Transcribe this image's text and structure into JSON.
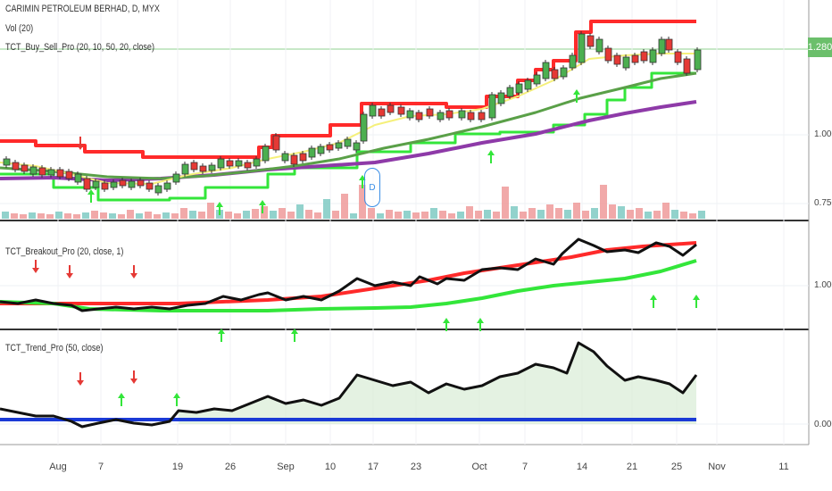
{
  "panel1": {
    "title": "CARIMIN PETROLEUM BERHAD, D, MYX",
    "vol_label": "Vol (20)",
    "indicator": "TCT_Buy_Sell_Pro (20, 10, 50, 20, close)",
    "last_price": "1.280",
    "y_ticks": [
      "1.000",
      "0.750"
    ]
  },
  "panel2": {
    "indicator": "TCT_Breakout_Pro (20, close, 1)",
    "y_ticks": [
      "1.000"
    ]
  },
  "panel3": {
    "indicator": "TCT_Trend_Pro (50, close)",
    "y_ticks": [
      "0.000"
    ]
  },
  "x_axis": [
    "Aug",
    "7",
    "19",
    "26",
    "Sep",
    "10",
    "17",
    "23",
    "Oct",
    "7",
    "14",
    "21",
    "25",
    "Nov",
    "11"
  ],
  "event_badge": "D",
  "colors": {
    "up": "#4caf50",
    "down": "#e53935",
    "upper_band": "#ff2a2a",
    "lower_band": "#33e63a",
    "ma_fast": "#f5f07a",
    "ma_mid": "#5aa048",
    "ma_slow": "#8e3aa8",
    "vol_up": "#7fcac3",
    "vol_down": "#ef9a9a",
    "trend_zero": "#1a3ad6"
  }
}
